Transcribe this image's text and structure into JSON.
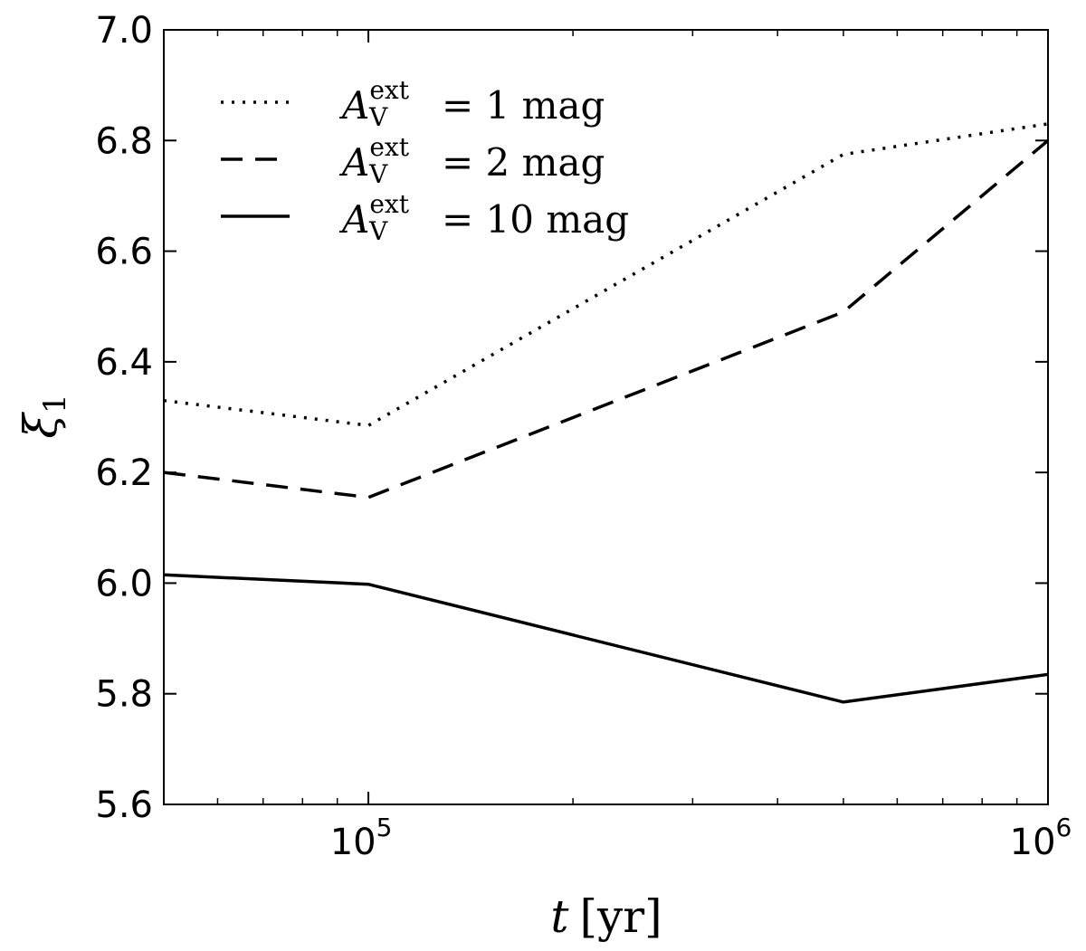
{
  "chart_data": {
    "type": "line",
    "title": "",
    "xlabel": {
      "var": "t",
      "unit": "[yr]"
    },
    "ylabel": {
      "var": "ξ",
      "sub": "1"
    },
    "xscale": "log",
    "xlim": [
      50000,
      1000000
    ],
    "ylim": [
      5.6,
      7.0
    ],
    "yticks": [
      "5.6",
      "5.8",
      "6.0",
      "6.2",
      "6.4",
      "6.6",
      "6.8",
      "7.0"
    ],
    "xticks": [
      {
        "value": 100000,
        "base": "10",
        "exp": "5"
      },
      {
        "value": 1000000,
        "base": "10",
        "exp": "6"
      }
    ],
    "grid": false,
    "legend_position": "top-left",
    "series": [
      {
        "style": "dotted",
        "legend": {
          "sym": "A",
          "sub": "V",
          "sup": "ext",
          "rest": "= 1 mag"
        },
        "x": [
          50000,
          100000,
          500000,
          1000000
        ],
        "y": [
          6.33,
          6.285,
          6.775,
          6.83
        ]
      },
      {
        "style": "dashed",
        "legend": {
          "sym": "A",
          "sub": "V",
          "sup": "ext",
          "rest": "= 2 mag"
        },
        "x": [
          50000,
          100000,
          500000,
          1000000
        ],
        "y": [
          6.2,
          6.155,
          6.49,
          6.8
        ]
      },
      {
        "style": "solid",
        "legend": {
          "sym": "A",
          "sub": "V",
          "sup": "ext",
          "rest": "= 10 mag"
        },
        "x": [
          50000,
          100000,
          500000,
          1000000
        ],
        "y": [
          6.015,
          5.998,
          5.785,
          5.835
        ]
      }
    ]
  }
}
